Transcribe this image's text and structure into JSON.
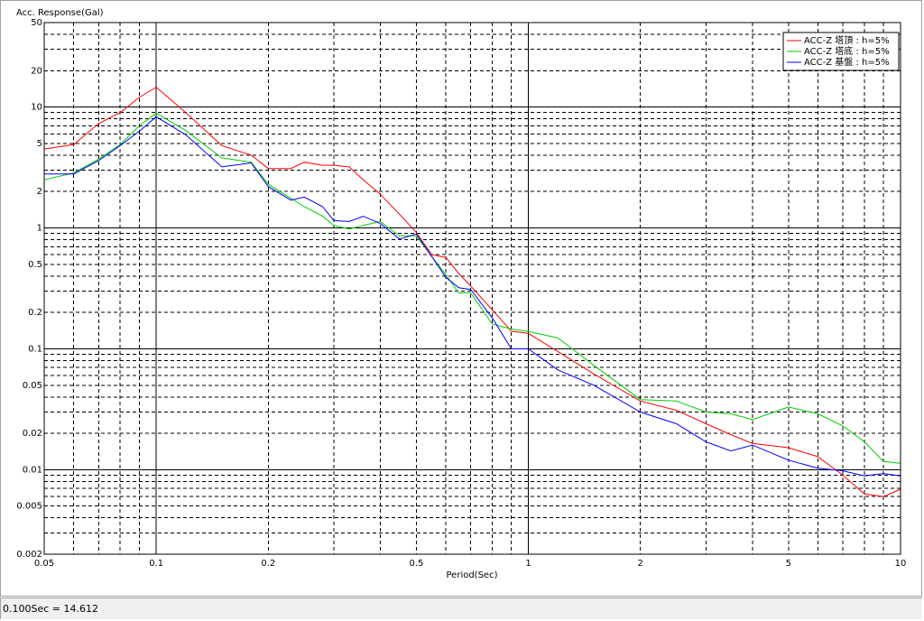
{
  "chart_data": {
    "type": "line",
    "y_label": "Acc. Response(Gal)",
    "x_label": "Period(Sec)",
    "xscale": "log",
    "yscale": "log",
    "grid": true,
    "legend": "top-right",
    "xlim": [
      0.05,
      10
    ],
    "ylim": [
      0.002,
      50
    ],
    "xticks": [
      0.05,
      0.1,
      0.2,
      0.5,
      1,
      2,
      5,
      10
    ],
    "yticks": [
      0.002,
      0.005,
      0.01,
      0.02,
      0.05,
      0.1,
      0.2,
      0.5,
      1,
      2,
      5,
      10,
      20,
      50
    ],
    "x": [
      0.05,
      0.06,
      0.07,
      0.08,
      0.09,
      0.1,
      0.12,
      0.15,
      0.18,
      0.2,
      0.23,
      0.25,
      0.28,
      0.3,
      0.33,
      0.36,
      0.4,
      0.45,
      0.5,
      0.55,
      0.6,
      0.65,
      0.7,
      0.8,
      0.9,
      1,
      1.2,
      1.5,
      2,
      2.5,
      3,
      3.5,
      4,
      5,
      6,
      7,
      8,
      9,
      10
    ],
    "series": [
      {
        "name": "ACC-Z 塔頂 : h=5%",
        "color": "#ff0000",
        "values": [
          4.5,
          4.9,
          7.3,
          9,
          12,
          14.6,
          9,
          4.8,
          4.0,
          3.1,
          3.1,
          3.5,
          3.3,
          3.3,
          3.2,
          2.5,
          1.9,
          1.3,
          0.92,
          0.6,
          0.57,
          0.42,
          0.33,
          0.21,
          0.14,
          0.134,
          0.095,
          0.062,
          0.037,
          0.031,
          0.024,
          0.0195,
          0.0165,
          0.0152,
          0.0128,
          0.009,
          0.0063,
          0.006,
          0.0069
        ]
      },
      {
        "name": "ACC-Z 塔底 : h=5%",
        "color": "#00cc00",
        "values": [
          2.5,
          2.85,
          3.7,
          4.9,
          7,
          8.9,
          6.4,
          3.8,
          3.5,
          2.3,
          1.76,
          1.5,
          1.25,
          1.05,
          0.98,
          1.05,
          1.13,
          0.86,
          0.86,
          0.58,
          0.41,
          0.29,
          0.29,
          0.16,
          0.146,
          0.139,
          0.123,
          0.073,
          0.038,
          0.037,
          0.03,
          0.029,
          0.026,
          0.033,
          0.029,
          0.023,
          0.017,
          0.0117,
          0.0113
        ]
      },
      {
        "name": "ACC-Z 基盤 : h=5%",
        "color": "#0000ff",
        "values": [
          2.8,
          2.8,
          3.6,
          4.8,
          6.3,
          8.3,
          5.9,
          3.2,
          3.45,
          2.2,
          1.7,
          1.8,
          1.5,
          1.15,
          1.13,
          1.25,
          1.09,
          0.81,
          0.89,
          0.58,
          0.39,
          0.32,
          0.31,
          0.18,
          0.1,
          0.1,
          0.067,
          0.05,
          0.03,
          0.024,
          0.017,
          0.0143,
          0.016,
          0.012,
          0.0103,
          0.0098,
          0.0089,
          0.0093,
          0.0089
        ]
      }
    ]
  },
  "status": "0.100Sec = 14.612"
}
